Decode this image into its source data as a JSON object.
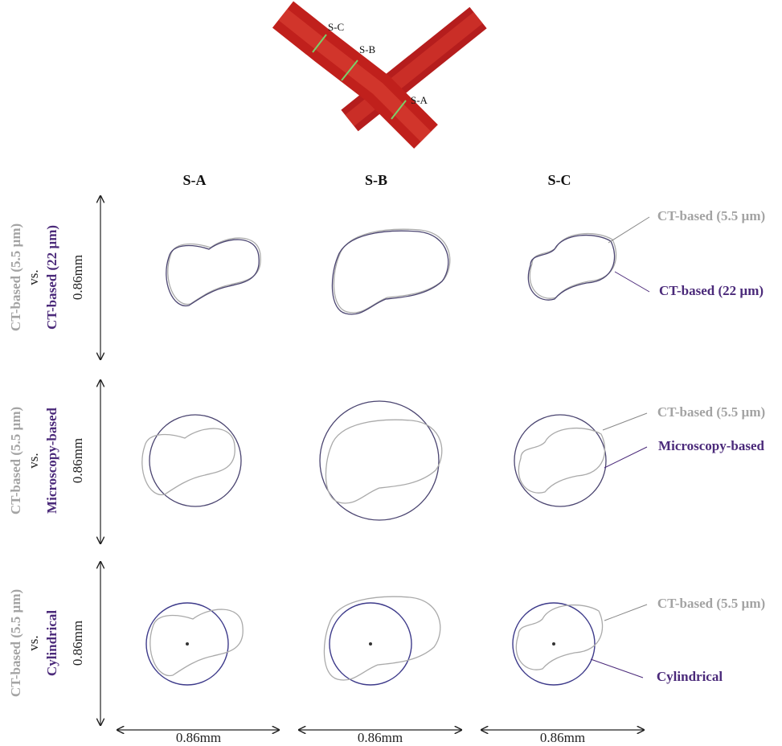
{
  "vessel_image": {
    "labels": [
      "S-C",
      "S-B",
      "S-A"
    ]
  },
  "columns": [
    "S-A",
    "S-B",
    "S-C"
  ],
  "rows": [
    {
      "reference": "CT-based (5.5 µm)",
      "vs": "vs.",
      "comparison": "CT-based (22 µm)",
      "scale": "0.86mm",
      "annotations": {
        "reference": "CT-based (5.5 µm)",
        "comparison": "CT-based (22 µm)"
      }
    },
    {
      "reference": "CT-based (5.5 µm)",
      "vs": "vs.",
      "comparison": "Microscopy-based",
      "scale": "0.86mm",
      "annotations": {
        "reference": "CT-based (5.5 µm)",
        "comparison": "Microscopy-based"
      }
    },
    {
      "reference": "CT-based (5.5 µm)",
      "vs": "vs.",
      "comparison": "Cylindrical",
      "scale": "0.86mm",
      "annotations": {
        "reference": "CT-based (5.5 µm)",
        "comparison": "Cylindrical"
      }
    }
  ],
  "x_scales": [
    "0.86mm",
    "0.86mm",
    "0.86mm"
  ]
}
